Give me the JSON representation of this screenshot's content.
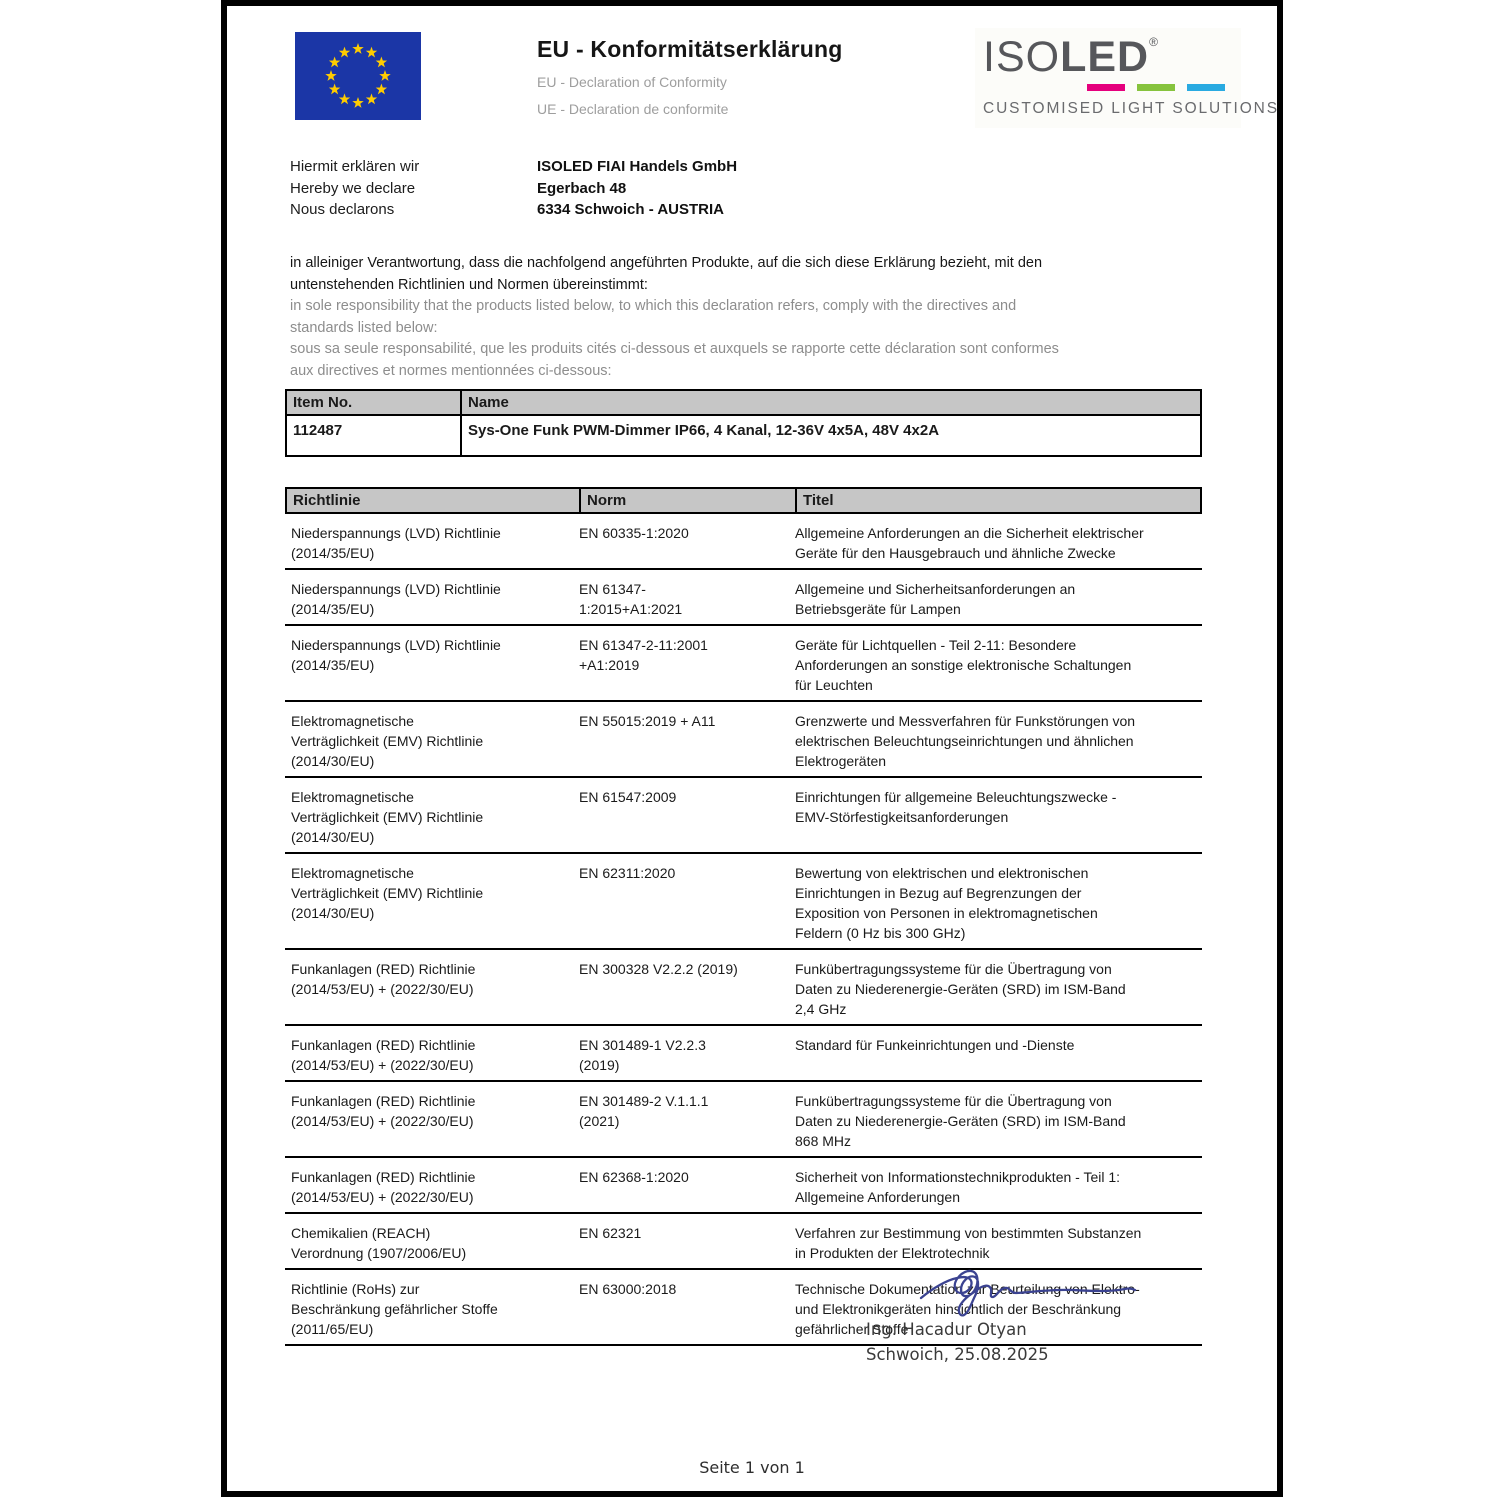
{
  "header": {
    "title": "EU - Konformitätserklärung",
    "subtitle_en": "EU - Declaration of Conformity",
    "subtitle_fr": "UE - Declaration de conformite"
  },
  "logo": {
    "brand_iso": "ISO",
    "brand_led": "LED",
    "registered_mark": "®",
    "tagline": "CUSTOMISED LIGHT SOLUTIONS",
    "text_color": "#56575b",
    "bar_colors": [
      "#e5007d",
      "#86c33e",
      "#29aae1"
    ]
  },
  "flag": {
    "blue": "#1b36a6",
    "star_color": "#ffcc00"
  },
  "declaration": {
    "labels": [
      "Hiermit erklären wir",
      "Hereby we declare",
      "Nous declarons"
    ],
    "company": [
      "ISOLED FIAI Handels GmbH",
      "Egerbach 48",
      "6334 Schwoich - AUSTRIA"
    ],
    "statement_de": "in alleiniger Verantwortung, dass die nachfolgend angeführten Produkte, auf die sich diese Erklärung bezieht, mit den untenstehenden Richtlinien und Normen übereinstimmt:",
    "statement_en": "in sole responsibility that the products listed below, to which this declaration refers, comply with the directives and standards listed below:",
    "statement_fr": "sous sa seule responsabilité, que les produits cités ci-dessous et auxquels se rapporte cette déclaration sont conformes aux directives et normes mentionnées ci-dessous:"
  },
  "item_table": {
    "headers": {
      "item_no": "Item No.",
      "name": "Name"
    },
    "row": {
      "item_no": "112487",
      "name": "Sys-One Funk PWM-Dimmer IP66, 4 Kanal, 12-36V 4x5A, 48V 4x2A"
    }
  },
  "standards_table": {
    "headers": {
      "directive": "Richtlinie",
      "norm": "Norm",
      "title": "Titel"
    },
    "rows": [
      {
        "directive": "Niederspannungs (LVD) Richtlinie (2014/35/EU)",
        "norm": "EN 60335-1:2020",
        "title": "Allgemeine Anforderungen an die Sicherheit elektrischer Geräte für den Hausgebrauch und ähnliche Zwecke"
      },
      {
        "directive": "Niederspannungs (LVD) Richtlinie (2014/35/EU)",
        "norm": "EN 61347-1:2015+A1:2021",
        "title": "Allgemeine und Sicherheitsanforderungen an Betriebsgeräte für Lampen"
      },
      {
        "directive": "Niederspannungs (LVD) Richtlinie (2014/35/EU)",
        "norm": "EN 61347-2-11:2001 +A1:2019",
        "title": "Geräte für Lichtquellen - Teil 2-11: Besondere Anforderungen an sonstige elektronische Schaltungen für Leuchten"
      },
      {
        "directive": "Elektromagnetische Verträglichkeit (EMV) Richtlinie (2014/30/EU)",
        "norm": "EN 55015:2019 + A11",
        "title": "Grenzwerte und Messverfahren für Funkstörungen von elektrischen Beleuchtungseinrichtungen und ähnlichen Elektrogeräten"
      },
      {
        "directive": "Elektromagnetische Verträglichkeit (EMV) Richtlinie (2014/30/EU)",
        "norm": "EN 61547:2009",
        "title": "Einrichtungen für allgemeine Beleuchtungszwecke - EMV-Störfestigkeitsanforderungen"
      },
      {
        "directive": "Elektromagnetische Verträglichkeit (EMV) Richtlinie (2014/30/EU)",
        "norm": "EN 62311:2020",
        "title": "Bewertung von elektrischen und elektronischen Einrichtungen in Bezug auf Begrenzungen der Exposition von Personen in elektromagnetischen Feldern (0 Hz bis 300 GHz)"
      },
      {
        "directive": "Funkanlagen (RED) Richtlinie (2014/53/EU) + (2022/30/EU)",
        "norm": "EN 300328 V2.2.2 (2019)",
        "title": "Funkübertragungssysteme für die Übertragung von Daten zu Niederenergie-Geräten (SRD) im ISM-Band 2,4 GHz"
      },
      {
        "directive": "Funkanlagen (RED) Richtlinie (2014/53/EU) + (2022/30/EU)",
        "norm": "EN 301489-1 V2.2.3 (2019)",
        "title": "Standard für Funkeinrichtungen und -Dienste"
      },
      {
        "directive": "Funkanlagen (RED) Richtlinie (2014/53/EU) + (2022/30/EU)",
        "norm": "EN 301489-2 V.1.1.1 (2021)",
        "title": "Funkübertragungssysteme für die Übertragung von Daten zu Niederenergie-Geräten (SRD) im ISM-Band 868 MHz"
      },
      {
        "directive": "Funkanlagen (RED) Richtlinie (2014/53/EU) + (2022/30/EU)",
        "norm": "EN 62368-1:2020",
        "title": "Sicherheit von Informationstechnikprodukten - Teil 1: Allgemeine Anforderungen"
      },
      {
        "directive": "Chemikalien (REACH) Verordnung (1907/2006/EU)",
        "norm": "EN 62321",
        "title": "Verfahren zur Bestimmung von bestimmten Substanzen in Produkten der Elektrotechnik"
      },
      {
        "directive": "Richtlinie (RoHs) zur Beschränkung gefährlicher Stoffe (2011/65/EU)",
        "norm": "EN 63000:2018",
        "title": "Technische Dokumentation zur Beurteilung von Elektro- und Elektronikgeräten hinsichtlich der Beschränkung gefährlicher Stoffe"
      }
    ]
  },
  "signature": {
    "name": "Ing. Hacadur Otyan",
    "place_date": "Schwoich,  25.08.2025",
    "ink_color": "#3b4391"
  },
  "footer": {
    "page_indicator": "Seite 1 von 1"
  }
}
